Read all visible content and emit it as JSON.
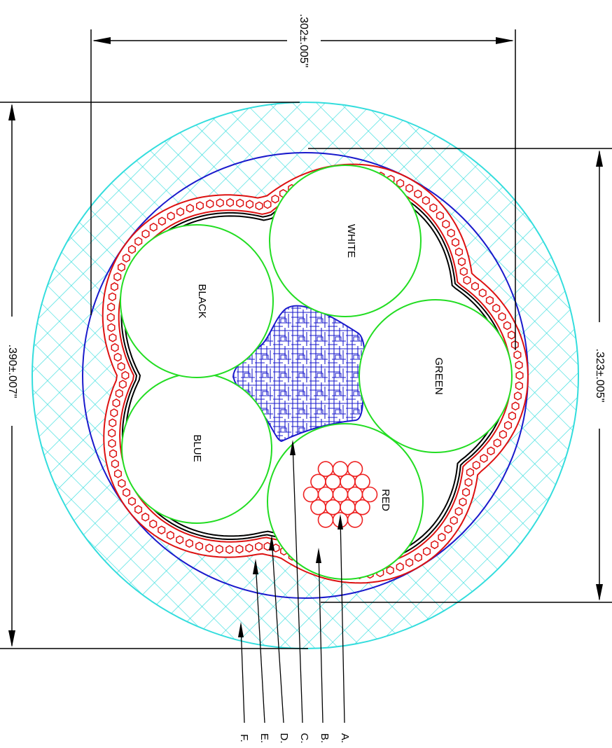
{
  "diagram": {
    "dimensions": {
      "width": ".302±.005\"",
      "overall_diameter": ".390±.007\"",
      "core_diameter": ".323±.005\""
    },
    "conductors": [
      {
        "label": "WHITE"
      },
      {
        "label": "GREEN"
      },
      {
        "label": "RED"
      },
      {
        "label": "BLUE"
      },
      {
        "label": "BLACK"
      }
    ],
    "callouts": [
      "A.",
      "B.",
      "C.",
      "D.",
      "E.",
      "F."
    ],
    "colors": {
      "insulation": "#22dd22",
      "strands": "#ee2222",
      "filler": "#1a1acc",
      "tape": "#000000",
      "braid": "#dd1111",
      "inner_jacket": "#1a1acc",
      "outer_jacket": "#33dddd"
    },
    "icons": [
      "cable-cross-section"
    ]
  }
}
